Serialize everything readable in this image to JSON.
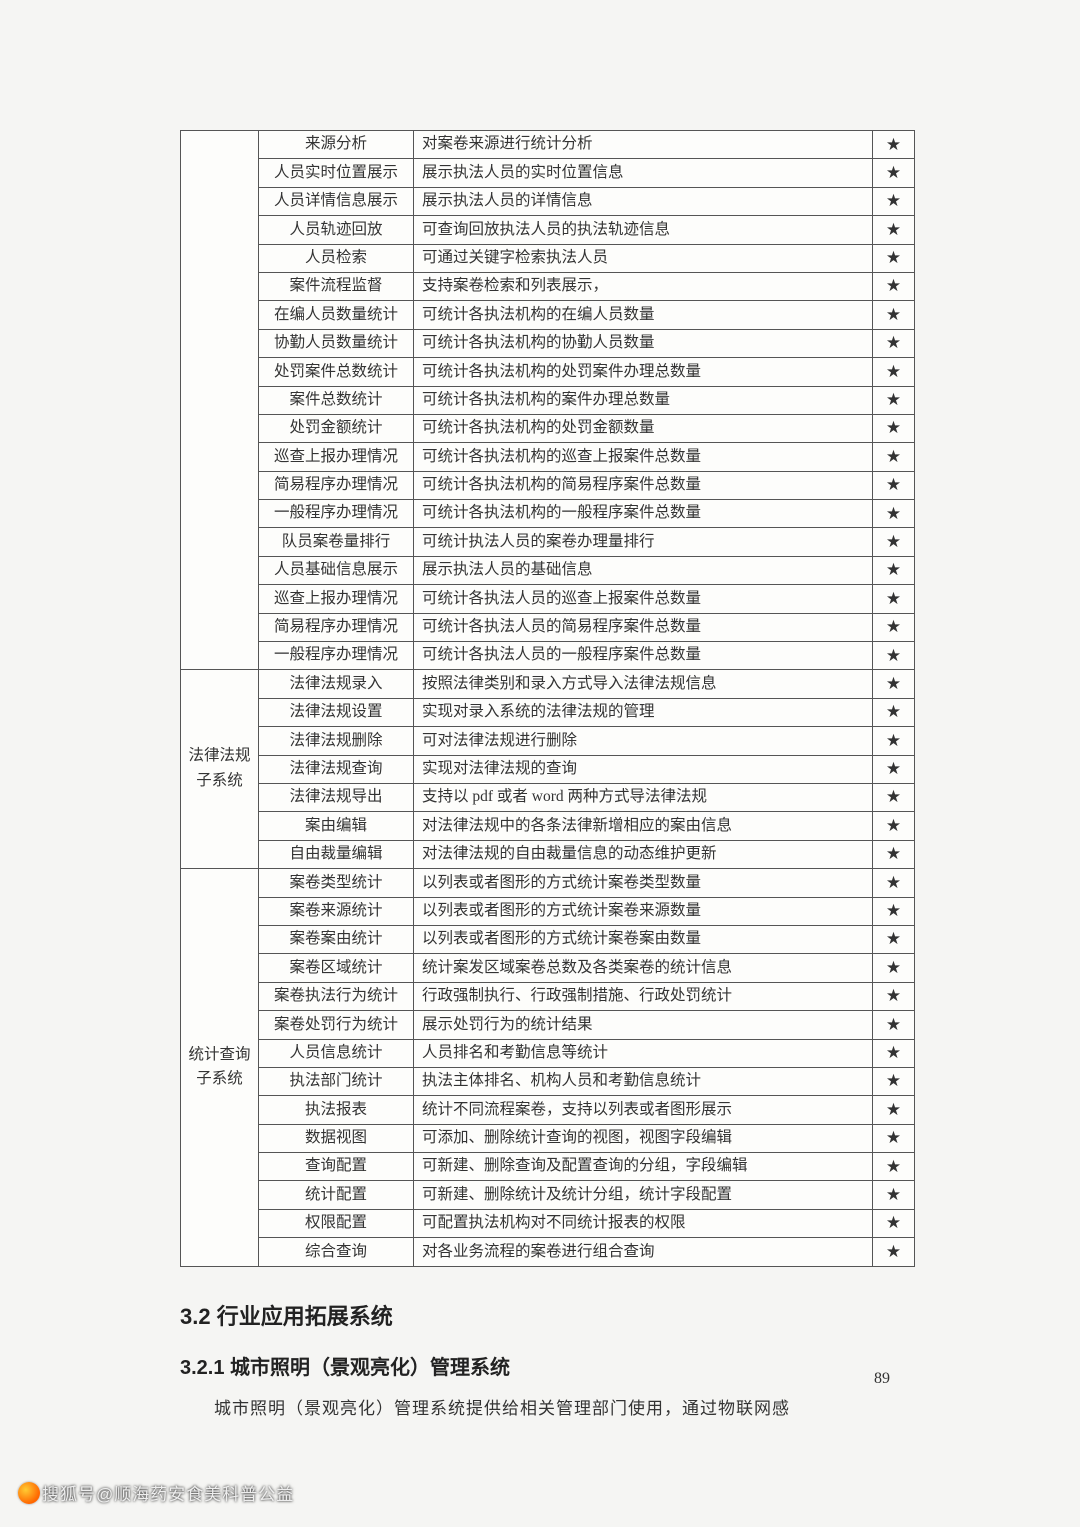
{
  "table": {
    "groups": [
      {
        "category": "",
        "rows": [
          {
            "name": "来源分析",
            "desc": "对案卷来源进行统计分析",
            "star": "★"
          },
          {
            "name": "人员实时位置展示",
            "desc": "展示执法人员的实时位置信息",
            "star": "★"
          },
          {
            "name": "人员详情信息展示",
            "desc": "展示执法人员的详情信息",
            "star": "★"
          },
          {
            "name": "人员轨迹回放",
            "desc": "可查询回放执法人员的执法轨迹信息",
            "star": "★"
          },
          {
            "name": "人员检索",
            "desc": "可通过关键字检索执法人员",
            "star": "★"
          },
          {
            "name": "案件流程监督",
            "desc": "支持案卷检索和列表展示，",
            "star": "★"
          },
          {
            "name": "在编人员数量统计",
            "desc": "可统计各执法机构的在编人员数量",
            "star": "★"
          },
          {
            "name": "协勤人员数量统计",
            "desc": "可统计各执法机构的协勤人员数量",
            "star": "★"
          },
          {
            "name": "处罚案件总数统计",
            "desc": "可统计各执法机构的处罚案件办理总数量",
            "star": "★"
          },
          {
            "name": "案件总数统计",
            "desc": "可统计各执法机构的案件办理总数量",
            "star": "★"
          },
          {
            "name": "处罚金额统计",
            "desc": "可统计各执法机构的处罚金额数量",
            "star": "★"
          },
          {
            "name": "巡查上报办理情况",
            "desc": "可统计各执法机构的巡查上报案件总数量",
            "star": "★"
          },
          {
            "name": "简易程序办理情况",
            "desc": "可统计各执法机构的简易程序案件总数量",
            "star": "★"
          },
          {
            "name": "一般程序办理情况",
            "desc": "可统计各执法机构的一般程序案件总数量",
            "star": "★"
          },
          {
            "name": "队员案卷量排行",
            "desc": "可统计执法人员的案卷办理量排行",
            "star": "★"
          },
          {
            "name": "人员基础信息展示",
            "desc": "展示执法人员的基础信息",
            "star": "★"
          },
          {
            "name": "巡查上报办理情况",
            "desc": "可统计各执法人员的巡查上报案件总数量",
            "star": "★"
          },
          {
            "name": "简易程序办理情况",
            "desc": "可统计各执法人员的简易程序案件总数量",
            "star": "★"
          },
          {
            "name": "一般程序办理情况",
            "desc": "可统计各执法人员的一般程序案件总数量",
            "star": "★"
          }
        ]
      },
      {
        "category": "法律法规\n子系统",
        "rows": [
          {
            "name": "法律法规录入",
            "desc": "按照法律类别和录入方式导入法律法规信息",
            "star": "★"
          },
          {
            "name": "法律法规设置",
            "desc": "实现对录入系统的法律法规的管理",
            "star": "★"
          },
          {
            "name": "法律法规删除",
            "desc": "可对法律法规进行删除",
            "star": "★"
          },
          {
            "name": "法律法规查询",
            "desc": "实现对法律法规的查询",
            "star": "★"
          },
          {
            "name": "法律法规导出",
            "desc": "支持以 pdf 或者 word 两种方式导法律法规",
            "star": "★"
          },
          {
            "name": "案由编辑",
            "desc": "对法律法规中的各条法律新增相应的案由信息",
            "star": "★"
          },
          {
            "name": "自由裁量编辑",
            "desc": "对法律法规的自由裁量信息的动态维护更新",
            "star": "★"
          }
        ]
      },
      {
        "category": "统计查询\n子系统",
        "rows": [
          {
            "name": "案卷类型统计",
            "desc": "以列表或者图形的方式统计案卷类型数量",
            "star": "★"
          },
          {
            "name": "案卷来源统计",
            "desc": "以列表或者图形的方式统计案卷来源数量",
            "star": "★"
          },
          {
            "name": "案卷案由统计",
            "desc": "以列表或者图形的方式统计案卷案由数量",
            "star": "★"
          },
          {
            "name": "案卷区域统计",
            "desc": "统计案发区域案卷总数及各类案卷的统计信息",
            "star": "★"
          },
          {
            "name": "案卷执法行为统计",
            "desc": "行政强制执行、行政强制措施、行政处罚统计",
            "star": "★"
          },
          {
            "name": "案卷处罚行为统计",
            "desc": "展示处罚行为的统计结果",
            "star": "★"
          },
          {
            "name": "人员信息统计",
            "desc": "人员排名和考勤信息等统计",
            "star": "★"
          },
          {
            "name": "执法部门统计",
            "desc": "执法主体排名、机构人员和考勤信息统计",
            "star": "★"
          },
          {
            "name": "执法报表",
            "desc": "统计不同流程案卷，支持以列表或者图形展示",
            "star": "★"
          },
          {
            "name": "数据视图",
            "desc": "可添加、删除统计查询的视图，视图字段编辑",
            "star": "★"
          },
          {
            "name": "查询配置",
            "desc": "可新建、删除查询及配置查询的分组，字段编辑",
            "star": "★"
          },
          {
            "name": "统计配置",
            "desc": "可新建、删除统计及统计分组，统计字段配置",
            "star": "★"
          },
          {
            "name": "权限配置",
            "desc": "可配置执法机构对不同统计报表的权限",
            "star": "★"
          },
          {
            "name": "综合查询",
            "desc": "对各业务流程的案卷进行组合查询",
            "star": "★"
          }
        ]
      }
    ]
  },
  "headings": {
    "h2": "3.2  行业应用拓展系统",
    "h3": "3.2.1  城市照明（景观亮化）管理系统"
  },
  "paragraph": "城市照明（景观亮化）管理系统提供给相关管理部门使用，通过物联网感",
  "page_number": "89",
  "watermark": "搜狐号@顺海药安食美科普公益"
}
